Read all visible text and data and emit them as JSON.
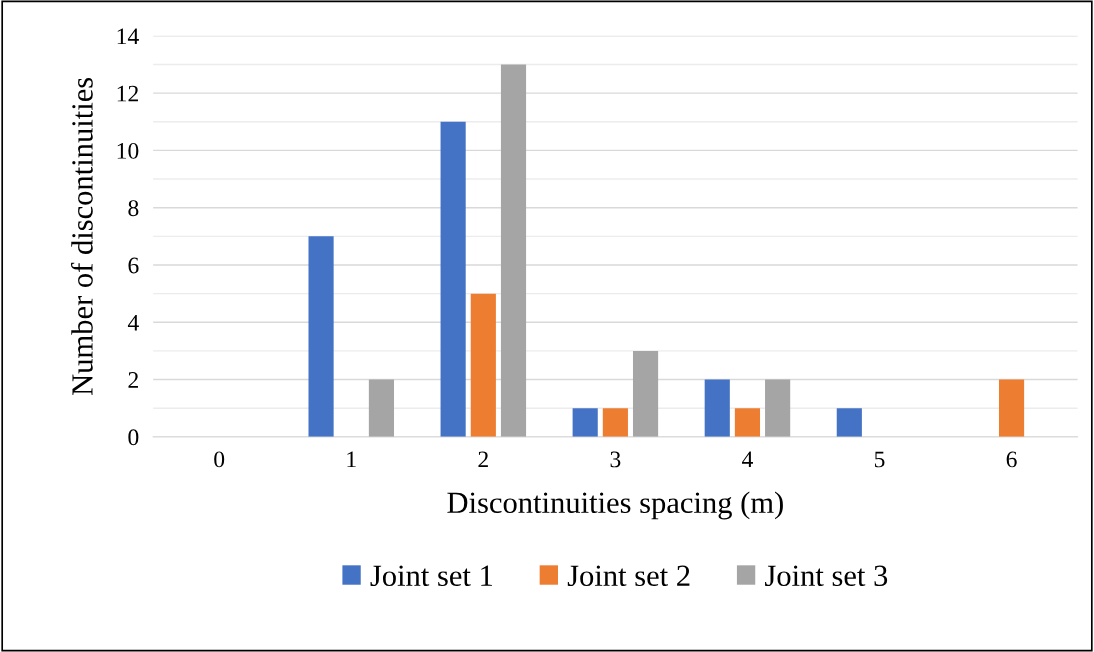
{
  "chart_data": {
    "type": "bar",
    "xlabel": "Discontinuities spacing (m)",
    "ylabel": "Number of discontinuities",
    "categories": [
      "0",
      "1",
      "2",
      "3",
      "4",
      "5",
      "6"
    ],
    "series": [
      {
        "name": "Joint set 1",
        "color": "#4472c4",
        "values": [
          0,
          7,
          11,
          1,
          2,
          1,
          0
        ]
      },
      {
        "name": "Joint set 2",
        "color": "#ed7d31",
        "values": [
          0,
          0,
          5,
          1,
          1,
          0,
          2
        ]
      },
      {
        "name": "Joint set 3",
        "color": "#a5a5a5",
        "values": [
          0,
          2,
          13,
          3,
          2,
          0,
          0
        ]
      }
    ],
    "ylim": [
      0,
      14
    ],
    "yticks": [
      0,
      {
        "value": 1,
        "label": null
      },
      2,
      {
        "value": 3,
        "label": null
      },
      4,
      {
        "value": 5,
        "label": null
      },
      6,
      {
        "value": 7,
        "label": null
      },
      8,
      {
        "value": 9,
        "label": null
      },
      10,
      {
        "value": 11,
        "label": null
      },
      12,
      {
        "value": 13,
        "label": null
      },
      14
    ],
    "grid": "y",
    "legend": "bottom"
  }
}
